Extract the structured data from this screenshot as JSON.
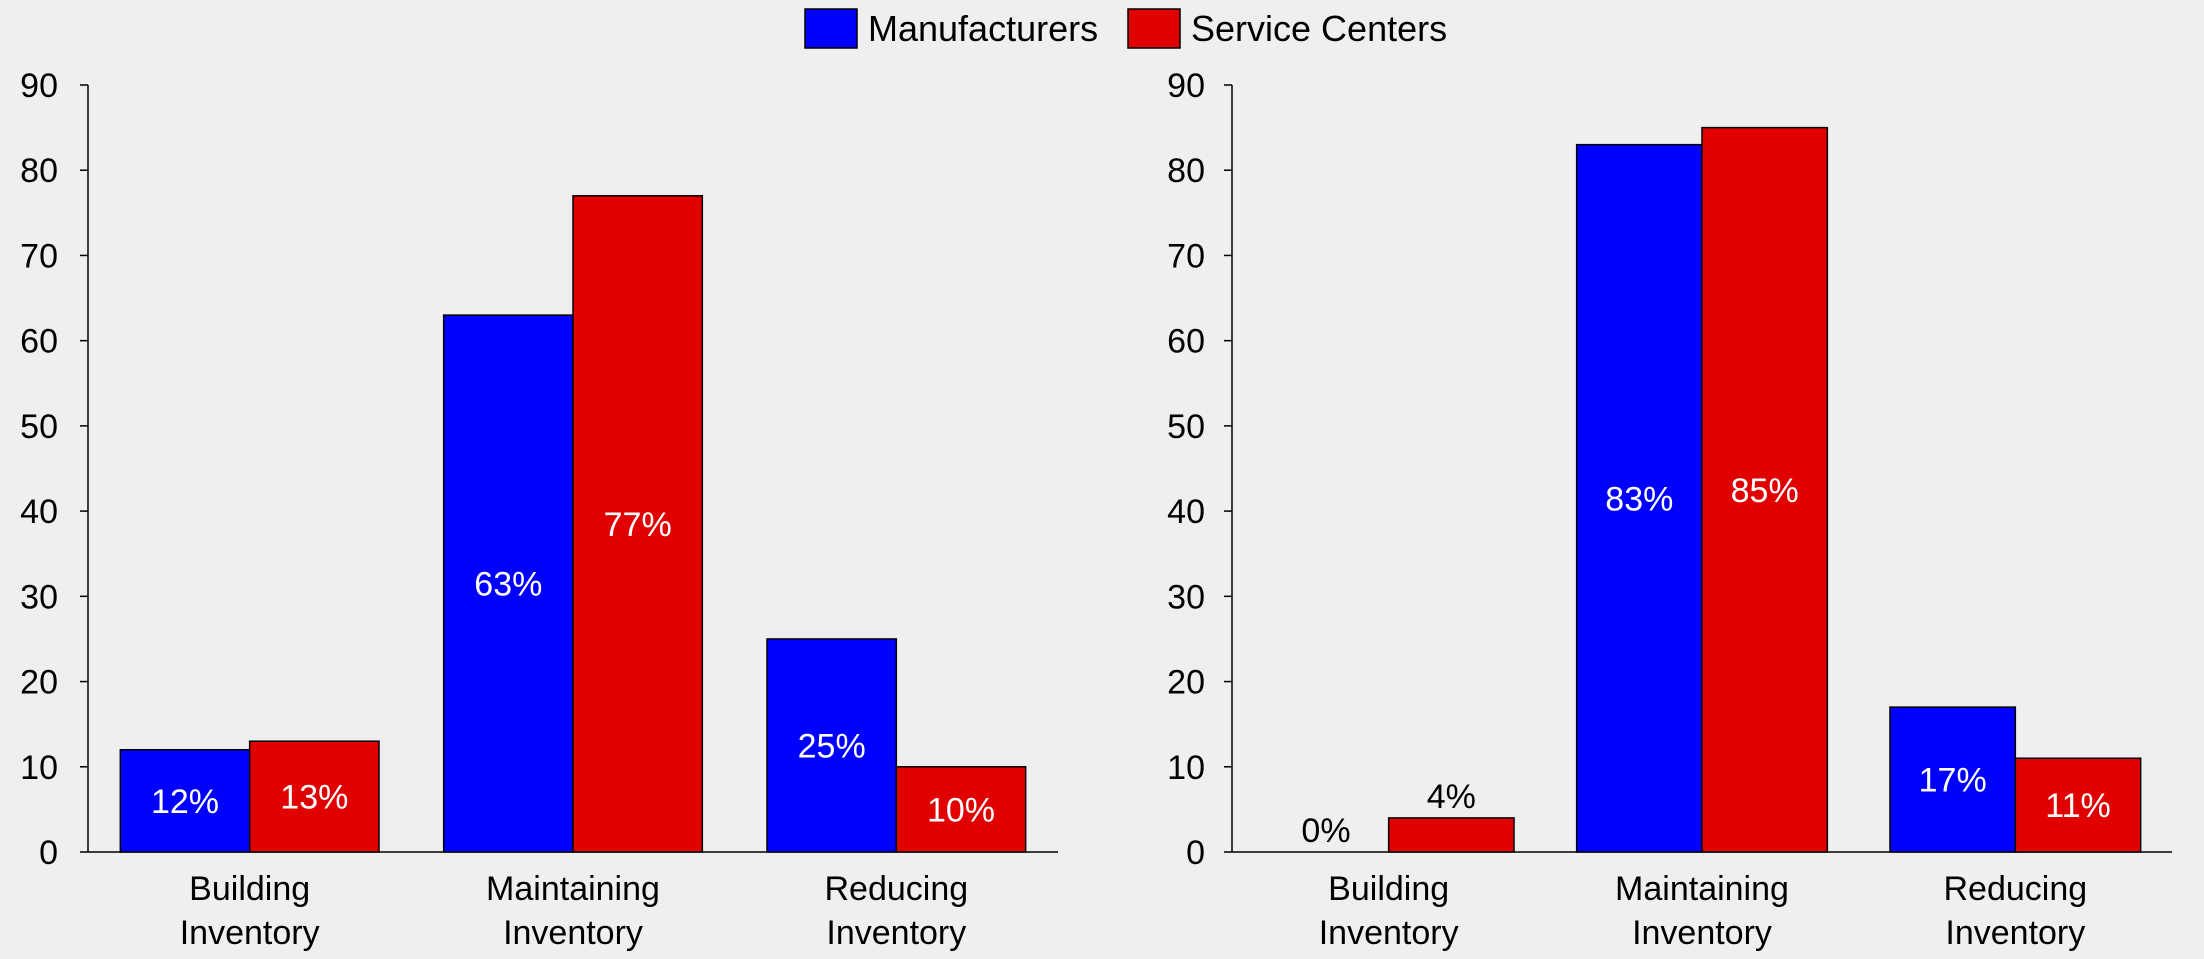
{
  "legend": {
    "placement": "top-center",
    "items": [
      {
        "label": "Manufacturers",
        "color": "#0000ff"
      },
      {
        "label": "Service Centers",
        "color": "#e00000"
      }
    ]
  },
  "chart_data": [
    {
      "type": "bar",
      "title": "",
      "xlabel": "",
      "ylabel": "",
      "categories": [
        [
          "Building",
          "Inventory"
        ],
        [
          "Maintaining",
          "Inventory"
        ],
        [
          "Reducing",
          "Inventory"
        ]
      ],
      "ylim": [
        0,
        90
      ],
      "yticks": [
        0,
        10,
        20,
        30,
        40,
        50,
        60,
        70,
        80,
        90
      ],
      "grid": false,
      "series": [
        {
          "name": "Manufacturers",
          "color": "#0000ff",
          "values": [
            12,
            63,
            25
          ],
          "labels": [
            "12%",
            "63%",
            "25%"
          ]
        },
        {
          "name": "Service Centers",
          "color": "#e00000",
          "values": [
            13,
            77,
            10
          ],
          "labels": [
            "13%",
            "77%",
            "10%"
          ]
        }
      ]
    },
    {
      "type": "bar",
      "title": "",
      "xlabel": "",
      "ylabel": "",
      "categories": [
        [
          "Building",
          "Inventory"
        ],
        [
          "Maintaining",
          "Inventory"
        ],
        [
          "Reducing",
          "Inventory"
        ]
      ],
      "ylim": [
        0,
        90
      ],
      "yticks": [
        0,
        10,
        20,
        30,
        40,
        50,
        60,
        70,
        80,
        90
      ],
      "grid": false,
      "series": [
        {
          "name": "Manufacturers",
          "color": "#0000ff",
          "values": [
            0,
            83,
            17
          ],
          "labels": [
            "0%",
            "83%",
            "17%"
          ]
        },
        {
          "name": "Service Centers",
          "color": "#e00000",
          "values": [
            4,
            85,
            11
          ],
          "labels": [
            "4%",
            "85%",
            "11%"
          ]
        }
      ]
    }
  ]
}
